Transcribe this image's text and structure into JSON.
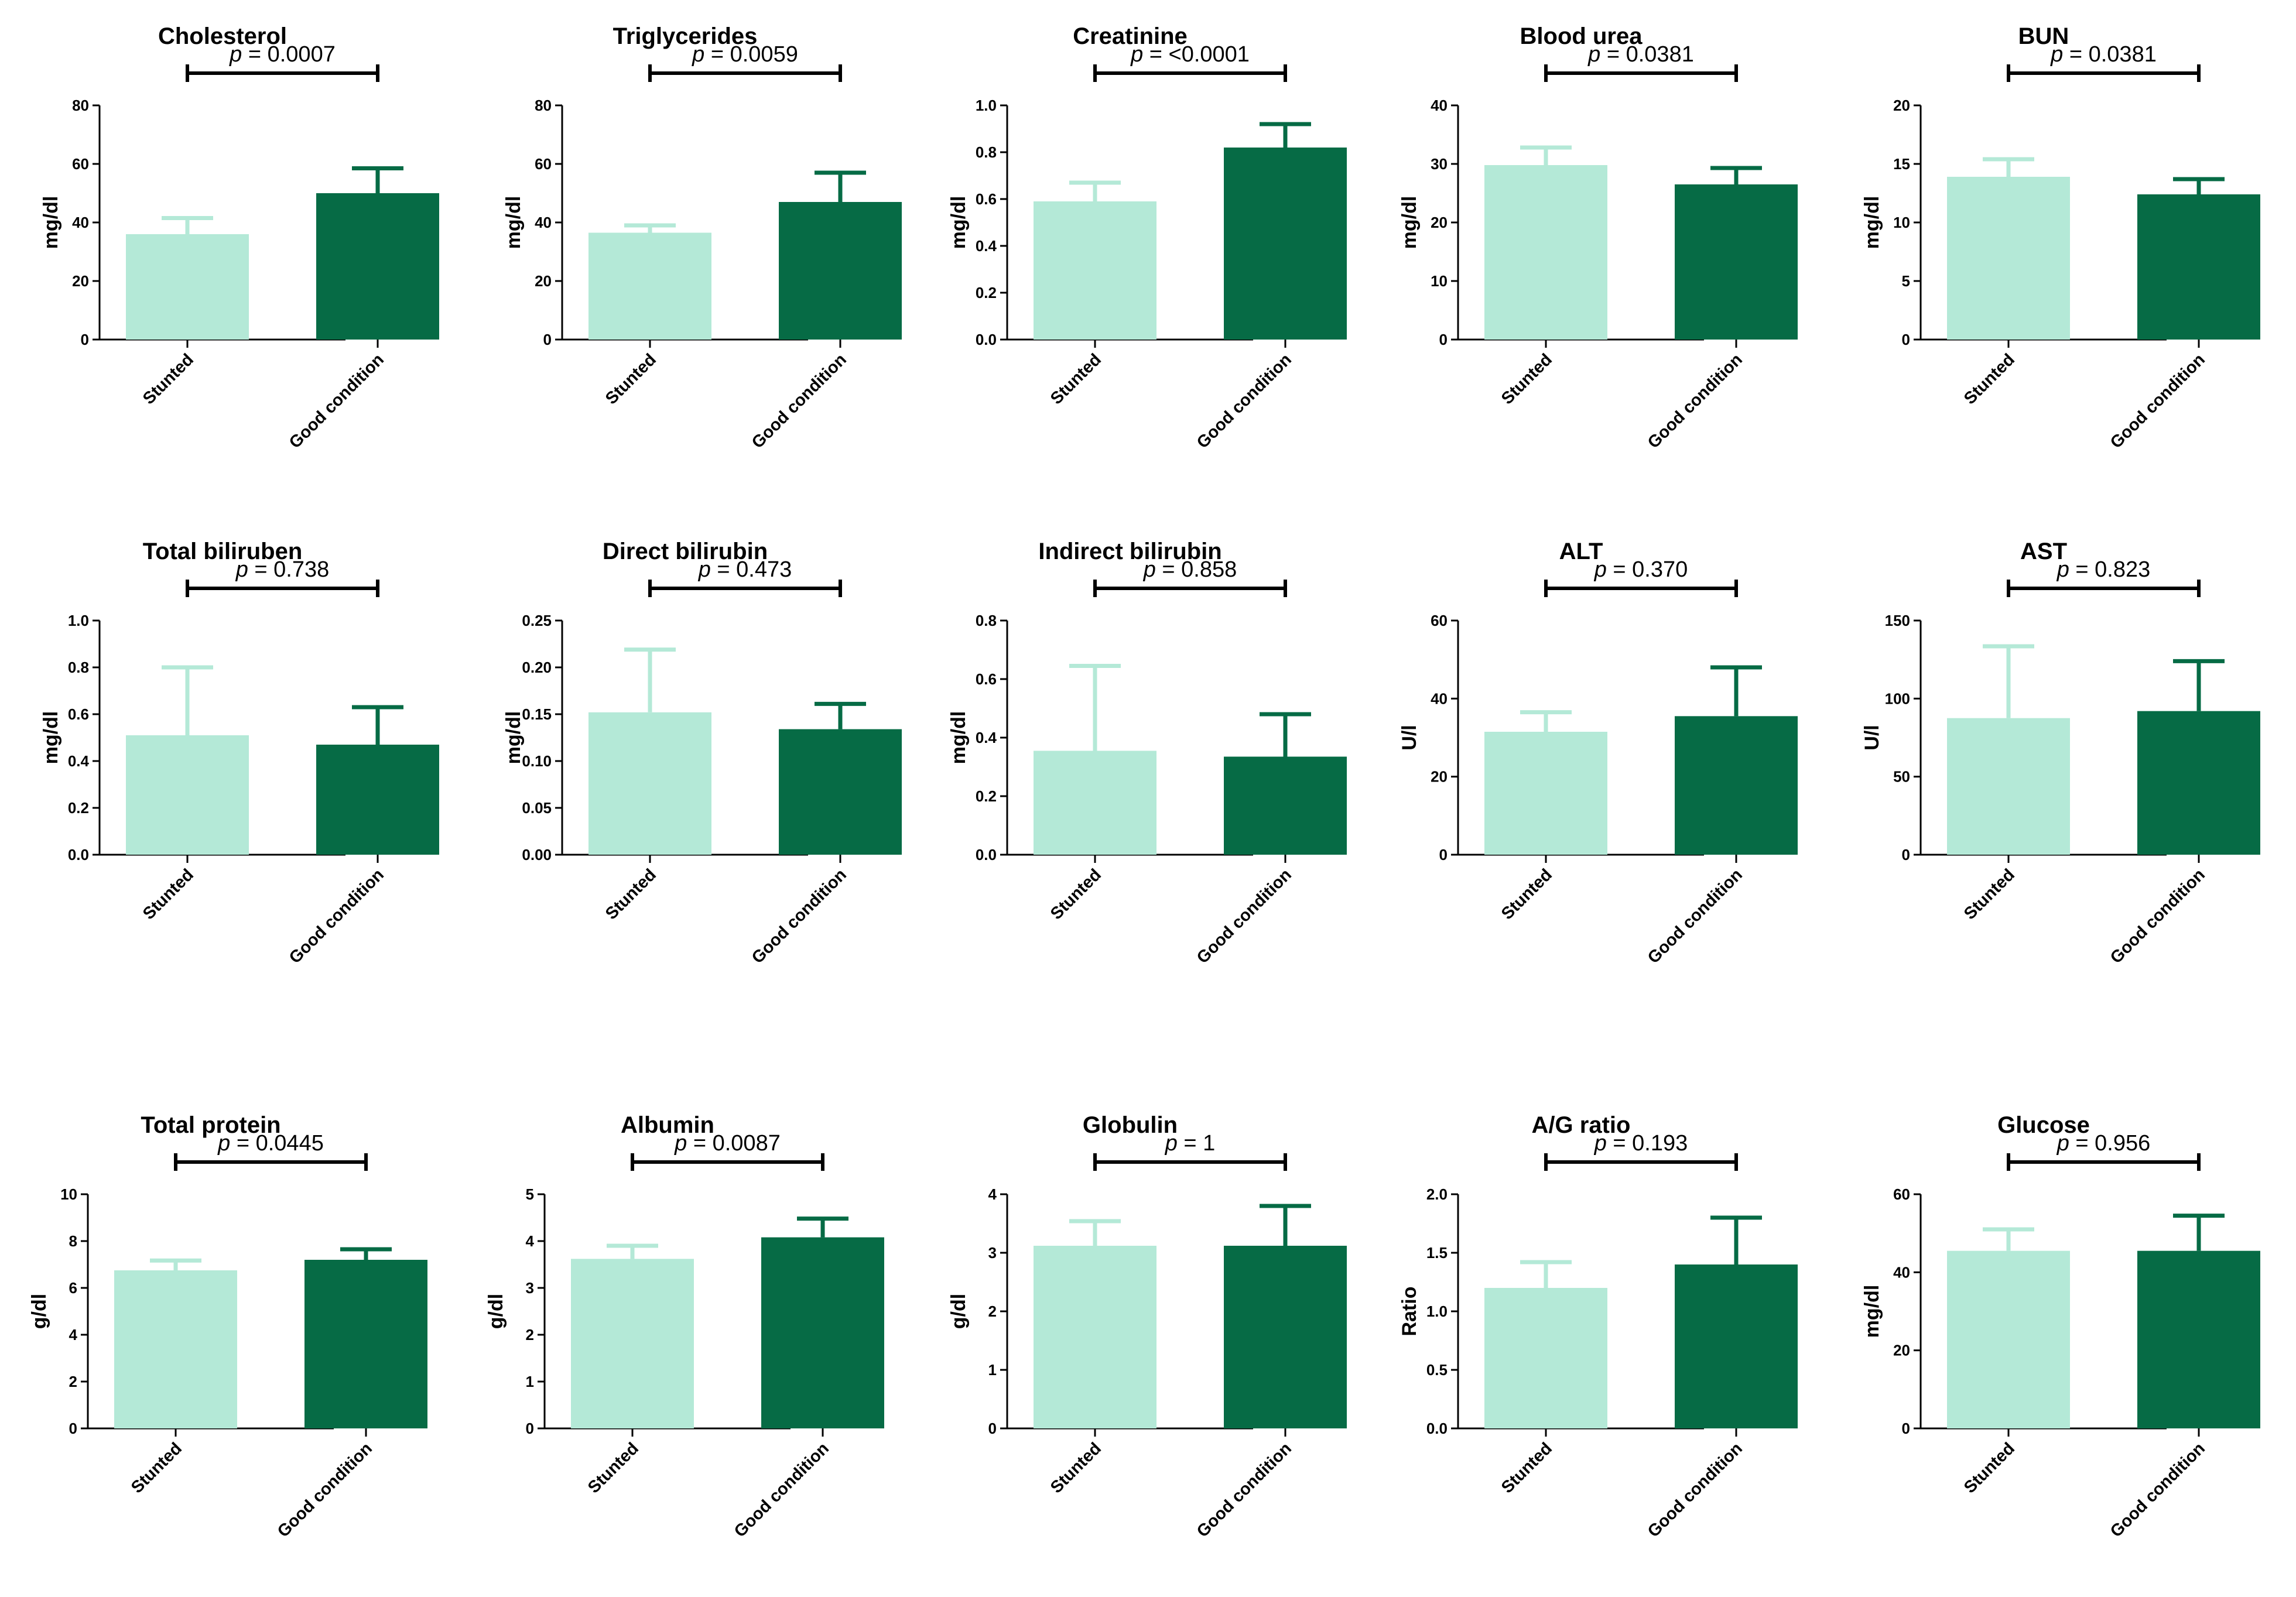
{
  "colors": {
    "stunted": "#b4e9d7",
    "good": "#066b45",
    "axis": "#000000"
  },
  "chart_data": [
    {
      "type": "bar",
      "title": "Cholesterol",
      "ylabel": "mg/dl",
      "ylim": [
        0,
        80
      ],
      "ticks": [
        0,
        20,
        40,
        60,
        80
      ],
      "tick_labels": [
        "0",
        "20",
        "40",
        "60",
        "80"
      ],
      "categories": [
        "Stunted",
        "Good condition"
      ],
      "values": [
        36,
        50
      ],
      "errors": [
        5.5,
        8.5
      ],
      "p_label": "p",
      "p_value": " = 0.0007"
    },
    {
      "type": "bar",
      "title": "Triglycerides",
      "ylabel": "mg/dl",
      "ylim": [
        0,
        80
      ],
      "ticks": [
        0,
        20,
        40,
        60,
        80
      ],
      "tick_labels": [
        "0",
        "20",
        "40",
        "60",
        "80"
      ],
      "categories": [
        "Stunted",
        "Good condition"
      ],
      "values": [
        36.5,
        47
      ],
      "errors": [
        2.5,
        10
      ],
      "p_label": "p",
      "p_value": " = 0.0059"
    },
    {
      "type": "bar",
      "title": "Creatinine",
      "ylabel": "mg/dl",
      "ylim": [
        0,
        1
      ],
      "ticks": [
        0,
        0.2,
        0.4,
        0.6,
        0.8,
        1
      ],
      "tick_labels": [
        "0.0",
        "0.2",
        "0.4",
        "0.6",
        "0.8",
        "1.0"
      ],
      "categories": [
        "Stunted",
        "Good condition"
      ],
      "values": [
        0.59,
        0.82
      ],
      "errors": [
        0.08,
        0.1
      ],
      "p_label": "p",
      "p_value": " = <0.0001"
    },
    {
      "type": "bar",
      "title": "Blood urea",
      "ylabel": "mg/dl",
      "ylim": [
        0,
        40
      ],
      "ticks": [
        0,
        10,
        20,
        30,
        40
      ],
      "tick_labels": [
        "0",
        "10",
        "20",
        "30",
        "40"
      ],
      "categories": [
        "Stunted",
        "Good condition"
      ],
      "values": [
        29.8,
        26.5
      ],
      "errors": [
        3,
        2.8
      ],
      "p_label": "p",
      "p_value": " = 0.0381"
    },
    {
      "type": "bar",
      "title": "BUN",
      "ylabel": "mg/dl",
      "ylim": [
        0,
        20
      ],
      "ticks": [
        0,
        5,
        10,
        15,
        20
      ],
      "tick_labels": [
        "0",
        "5",
        "10",
        "15",
        "20"
      ],
      "categories": [
        "Stunted",
        "Good condition"
      ],
      "values": [
        13.9,
        12.4
      ],
      "errors": [
        1.5,
        1.3
      ],
      "p_label": "p",
      "p_value": " = 0.0381"
    },
    {
      "type": "bar",
      "title": "Total biliruben",
      "ylabel": "mg/dl",
      "ylim": [
        0,
        1
      ],
      "ticks": [
        0,
        0.2,
        0.4,
        0.6,
        0.8,
        1
      ],
      "tick_labels": [
        "0.0",
        "0.2",
        "0.4",
        "0.6",
        "0.8",
        "1.0"
      ],
      "categories": [
        "Stunted",
        "Good condition"
      ],
      "values": [
        0.51,
        0.47
      ],
      "errors": [
        0.29,
        0.16
      ],
      "p_label": "p",
      "p_value": " = 0.738"
    },
    {
      "type": "bar",
      "title": "Direct bilirubin",
      "ylabel": "mg/dl",
      "ylim": [
        0,
        0.25
      ],
      "ticks": [
        0,
        0.05,
        0.1,
        0.15,
        0.2,
        0.25
      ],
      "tick_labels": [
        "0.00",
        "0.05",
        "0.10",
        "0.15",
        "0.20",
        "0.25"
      ],
      "categories": [
        "Stunted",
        "Good condition"
      ],
      "values": [
        0.152,
        0.134
      ],
      "errors": [
        0.067,
        0.027
      ],
      "p_label": "p",
      "p_value": " = 0.473"
    },
    {
      "type": "bar",
      "title": "Indirect bilirubin",
      "ylabel": "mg/dl",
      "ylim": [
        0,
        0.8
      ],
      "ticks": [
        0,
        0.2,
        0.4,
        0.6,
        0.8
      ],
      "tick_labels": [
        "0.0",
        "0.2",
        "0.4",
        "0.6",
        "0.8"
      ],
      "categories": [
        "Stunted",
        "Good condition"
      ],
      "values": [
        0.355,
        0.335
      ],
      "errors": [
        0.29,
        0.145
      ],
      "p_label": "p",
      "p_value": " = 0.858"
    },
    {
      "type": "bar",
      "title": "ALT",
      "ylabel": "U/l",
      "ylim": [
        0,
        60
      ],
      "ticks": [
        0,
        20,
        40,
        60
      ],
      "tick_labels": [
        "0",
        "20",
        "40",
        "60"
      ],
      "categories": [
        "Stunted",
        "Good condition"
      ],
      "values": [
        31.5,
        35.5
      ],
      "errors": [
        5,
        12.5
      ],
      "p_label": "p",
      "p_value": " = 0.370"
    },
    {
      "type": "bar",
      "title": "AST",
      "ylabel": "U/l",
      "ylim": [
        0,
        150
      ],
      "ticks": [
        0,
        50,
        100,
        150
      ],
      "tick_labels": [
        "0",
        "50",
        "100",
        "150"
      ],
      "categories": [
        "Stunted",
        "Good condition"
      ],
      "values": [
        87.5,
        92
      ],
      "errors": [
        46,
        32
      ],
      "p_label": "p",
      "p_value": " = 0.823"
    },
    {
      "type": "bar",
      "title": "Total protein",
      "ylabel": "g/dl",
      "ylim": [
        0,
        10
      ],
      "ticks": [
        0,
        2,
        4,
        6,
        8,
        10
      ],
      "tick_labels": [
        "0",
        "2",
        "4",
        "6",
        "8",
        "10"
      ],
      "categories": [
        "Stunted",
        "Good condition"
      ],
      "values": [
        6.75,
        7.2
      ],
      "errors": [
        0.42,
        0.45
      ],
      "p_label": "p",
      "p_value": " = 0.0445"
    },
    {
      "type": "bar",
      "title": "Albumin",
      "ylabel": "g/dl",
      "ylim": [
        0,
        5
      ],
      "ticks": [
        0,
        1,
        2,
        3,
        4,
        5
      ],
      "tick_labels": [
        "0",
        "1",
        "2",
        "3",
        "4",
        "5"
      ],
      "categories": [
        "Stunted",
        "Good condition"
      ],
      "values": [
        3.62,
        4.08
      ],
      "errors": [
        0.28,
        0.4
      ],
      "p_label": "p",
      "p_value": " = 0.0087"
    },
    {
      "type": "bar",
      "title": "Globulin",
      "ylabel": "g/dl",
      "ylim": [
        0,
        4
      ],
      "ticks": [
        0,
        1,
        2,
        3,
        4
      ],
      "tick_labels": [
        "0",
        "1",
        "2",
        "3",
        "4"
      ],
      "categories": [
        "Stunted",
        "Good condition"
      ],
      "values": [
        3.12,
        3.12
      ],
      "errors": [
        0.42,
        0.68
      ],
      "p_label": "p",
      "p_value": " = 1"
    },
    {
      "type": "bar",
      "title": "A/G ratio",
      "ylabel": "Ratio",
      "ylim": [
        0,
        2
      ],
      "ticks": [
        0,
        0.5,
        1,
        1.5,
        2
      ],
      "tick_labels": [
        "0.0",
        "0.5",
        "1.0",
        "1.5",
        "2.0"
      ],
      "categories": [
        "Stunted",
        "Good condition"
      ],
      "values": [
        1.2,
        1.4
      ],
      "errors": [
        0.22,
        0.4
      ],
      "p_label": "p",
      "p_value": " = 0.193"
    },
    {
      "type": "bar",
      "title": "Glucose",
      "ylabel": "mg/dl",
      "ylim": [
        0,
        60
      ],
      "ticks": [
        0,
        20,
        40,
        60
      ],
      "tick_labels": [
        "0",
        "20",
        "40",
        "60"
      ],
      "categories": [
        "Stunted",
        "Good condition"
      ],
      "values": [
        45.5,
        45.5
      ],
      "errors": [
        5.5,
        9
      ],
      "p_label": "p",
      "p_value": " = 0.956"
    }
  ]
}
